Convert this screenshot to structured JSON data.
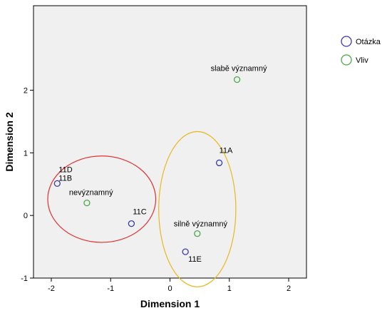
{
  "chart_data": {
    "type": "scatter",
    "title": "",
    "xlabel": "Dimension 1",
    "ylabel": "Dimension 2",
    "xlim": [
      -2.3,
      2.3
    ],
    "ylim": [
      -1.0,
      3.35
    ],
    "xticks": [
      "-2",
      "-1",
      "0",
      "1",
      "2"
    ],
    "xtick_values": [
      -2,
      -1,
      0,
      1,
      2
    ],
    "yticks": [
      "-1",
      "0",
      "1",
      "2"
    ],
    "ytick_values": [
      -1,
      0,
      1,
      2
    ],
    "grid": false,
    "legend_position": "right",
    "series": [
      {
        "name": "Otázka",
        "color": "#3a3aa8",
        "points": [
          {
            "x": -1.9,
            "y": 0.51,
            "label": "11B"
          },
          {
            "x": -0.65,
            "y": -0.13,
            "label": "11C"
          },
          {
            "x": 0.83,
            "y": 0.84,
            "label": "11A"
          },
          {
            "x": 0.26,
            "y": -0.58,
            "label": "11E"
          }
        ]
      },
      {
        "name": "Vliv",
        "color": "#4aa84a",
        "points": [
          {
            "x": -1.4,
            "y": 0.2,
            "label": "nevýznamný"
          },
          {
            "x": 1.13,
            "y": 2.17,
            "label": "slabě významný"
          },
          {
            "x": 0.46,
            "y": -0.29,
            "label": "silně významný"
          }
        ]
      }
    ],
    "extra_labels": [
      {
        "text": "11D",
        "x": -1.9,
        "y": 0.51
      }
    ],
    "ellipses": [
      {
        "cx": -1.15,
        "cy": 0.26,
        "rx": 0.91,
        "ry": 0.69,
        "color": "#e03030"
      },
      {
        "cx": 0.46,
        "cy": 0.1,
        "rx": 0.65,
        "ry": 1.24,
        "color": "#e8b820"
      }
    ]
  }
}
